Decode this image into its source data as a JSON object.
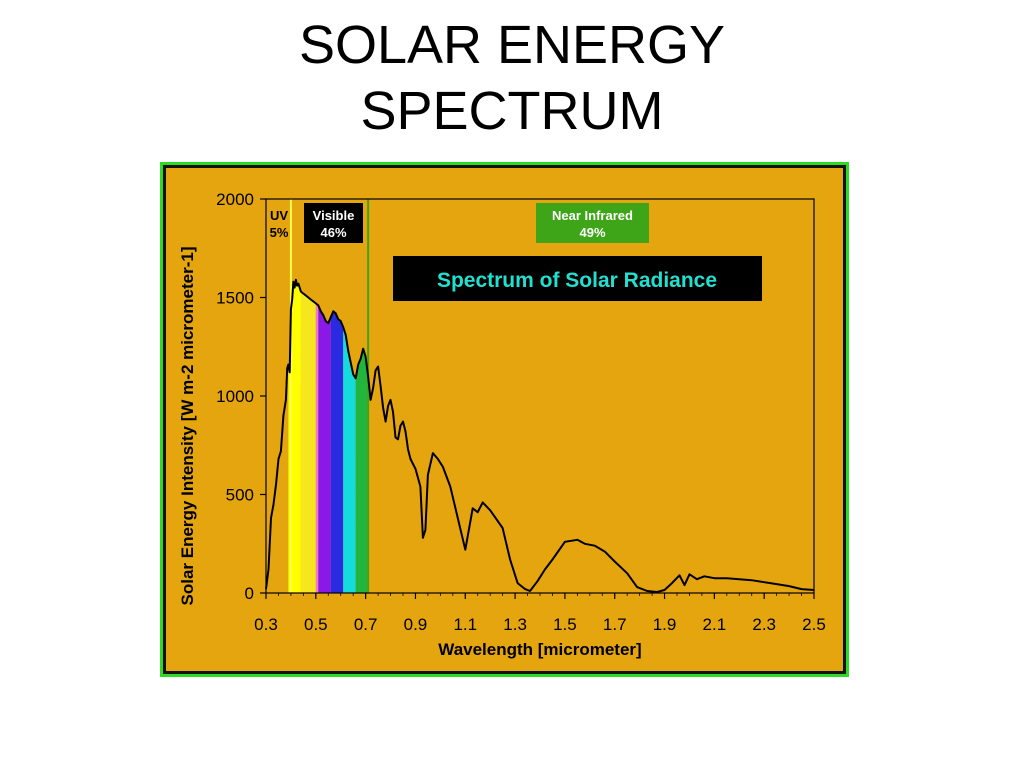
{
  "slide": {
    "title_line1": "SOLAR ENERGY",
    "title_line2": "SPECTRUM"
  },
  "chart_data": {
    "type": "area",
    "title": "Spectrum of Solar Radiance",
    "xlabel": "Wavelength [micrometer]",
    "ylabel": "Solar Energy Intensity [W m-2 micrometer-1]",
    "xlim": [
      0.3,
      2.5
    ],
    "ylim": [
      0,
      2000
    ],
    "x_ticks": [
      0.3,
      0.5,
      0.7,
      0.9,
      1.1,
      1.3,
      1.5,
      1.7,
      1.9,
      2.1,
      2.3,
      2.5
    ],
    "x_tick_labels": [
      "0.3",
      "0.5",
      "0.7",
      "0.9",
      "1.1",
      "1.3",
      "1.5",
      "1.7",
      "1.9",
      "2.1",
      "2.3",
      "2.5"
    ],
    "y_ticks": [
      0,
      500,
      1000,
      1500,
      2000
    ],
    "y_tick_labels": [
      "0",
      "500",
      "1000",
      "1500",
      "2000"
    ],
    "grid": false,
    "bands": [
      {
        "name": "UV",
        "percent": "5%",
        "range": [
          0.3,
          0.4
        ],
        "label_bg": "",
        "label_color": "#000000"
      },
      {
        "name": "Visible",
        "percent": "46%",
        "range": [
          0.4,
          0.7
        ],
        "label_bg": "#000000",
        "label_color": "#ffffff"
      },
      {
        "name": "Near Infrared",
        "percent": "49%",
        "range": [
          0.7,
          2.5
        ],
        "label_bg": "#3fa518",
        "label_color": "#ffffff"
      }
    ],
    "band_dividers": [
      {
        "x": 0.4,
        "color": "#ffff4a"
      },
      {
        "x": 0.71,
        "color": "#3fa518"
      }
    ],
    "color_bands": [
      {
        "x0": 0.39,
        "x1": 0.44,
        "color": "#ffff00"
      },
      {
        "x0": 0.44,
        "x1": 0.5,
        "color": "#f5e61e"
      },
      {
        "x0": 0.5,
        "x1": 0.51,
        "color": "#f07ac8"
      },
      {
        "x0": 0.51,
        "x1": 0.56,
        "color": "#8a19e6"
      },
      {
        "x0": 0.56,
        "x1": 0.61,
        "color": "#2a2ae0"
      },
      {
        "x0": 0.61,
        "x1": 0.66,
        "color": "#14dcdc"
      },
      {
        "x0": 0.66,
        "x1": 0.71,
        "color": "#22b43c"
      }
    ],
    "series": [
      {
        "x": [
          0.3,
          0.31,
          0.32,
          0.33,
          0.34,
          0.35,
          0.36,
          0.37,
          0.38,
          0.385,
          0.39,
          0.395,
          0.4,
          0.405,
          0.41,
          0.415,
          0.42,
          0.425,
          0.43,
          0.44,
          0.45,
          0.46,
          0.47,
          0.48,
          0.49,
          0.5,
          0.51,
          0.52,
          0.53,
          0.54,
          0.55,
          0.56,
          0.57,
          0.58,
          0.59,
          0.6,
          0.61,
          0.62,
          0.63,
          0.64,
          0.65,
          0.66,
          0.67,
          0.68,
          0.69,
          0.7,
          0.71,
          0.72,
          0.73,
          0.74,
          0.75,
          0.76,
          0.77,
          0.78,
          0.79,
          0.8,
          0.81,
          0.82,
          0.83,
          0.84,
          0.85,
          0.86,
          0.87,
          0.88,
          0.9,
          0.92,
          0.93,
          0.94,
          0.95,
          0.97,
          0.99,
          1.01,
          1.04,
          1.07,
          1.1,
          1.13,
          1.15,
          1.17,
          1.2,
          1.25,
          1.28,
          1.31,
          1.34,
          1.36,
          1.39,
          1.42,
          1.45,
          1.5,
          1.55,
          1.58,
          1.62,
          1.66,
          1.7,
          1.75,
          1.79,
          1.83,
          1.87,
          1.9,
          1.93,
          1.96,
          1.98,
          2.0,
          2.03,
          2.06,
          2.1,
          2.15,
          2.2,
          2.25,
          2.3,
          2.35,
          2.4,
          2.45,
          2.5
        ],
        "y": [
          20,
          120,
          380,
          450,
          550,
          680,
          720,
          900,
          980,
          1140,
          1160,
          1120,
          1440,
          1490,
          1580,
          1550,
          1590,
          1560,
          1570,
          1530,
          1520,
          1510,
          1500,
          1490,
          1480,
          1470,
          1460,
          1430,
          1410,
          1380,
          1370,
          1400,
          1430,
          1420,
          1390,
          1380,
          1350,
          1310,
          1230,
          1170,
          1110,
          1090,
          1160,
          1190,
          1240,
          1200,
          1100,
          980,
          1040,
          1130,
          1150,
          1050,
          940,
          870,
          950,
          980,
          920,
          790,
          780,
          850,
          870,
          820,
          730,
          680,
          630,
          540,
          280,
          320,
          600,
          710,
          680,
          640,
          540,
          380,
          220,
          430,
          410,
          460,
          420,
          330,
          170,
          50,
          20,
          10,
          60,
          120,
          170,
          260,
          270,
          250,
          240,
          210,
          160,
          100,
          30,
          10,
          5,
          15,
          50,
          90,
          40,
          95,
          70,
          85,
          75,
          75,
          70,
          65,
          55,
          45,
          35,
          20,
          15
        ]
      }
    ]
  }
}
